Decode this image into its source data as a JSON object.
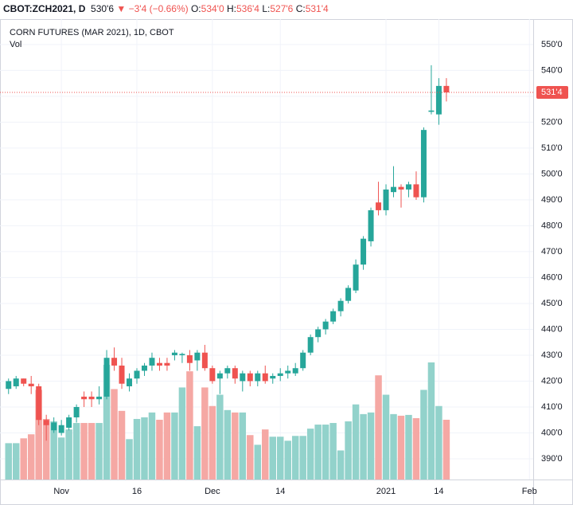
{
  "header": {
    "symbol": "CBOT:ZCH2021, D",
    "last": "530'6",
    "arrow": "▼",
    "change": "−3'4 (−0.66%)",
    "ohlc_labels": [
      "O:",
      "H:",
      "L:",
      "C:"
    ],
    "ohlc_values": [
      "534'0",
      "536'4",
      "527'6",
      "531'4"
    ]
  },
  "chart_data": {
    "type": "candlestick",
    "title": "CORN FUTURES (MAR 2021), 1D, CBOT",
    "subtitle": "Vol",
    "categories": [
      null,
      null,
      null,
      null,
      null,
      null,
      null,
      "Nov",
      null,
      null,
      null,
      null,
      null,
      null,
      null,
      null,
      null,
      "16",
      null,
      null,
      null,
      null,
      null,
      null,
      null,
      null,
      null,
      "Dec",
      null,
      null,
      null,
      null,
      null,
      null,
      null,
      null,
      "14",
      null,
      null,
      null,
      null,
      null,
      null,
      null,
      null,
      null,
      null,
      null,
      null,
      null,
      "2021",
      null,
      null,
      null,
      null,
      null,
      null,
      "14",
      null,
      null,
      null,
      null,
      null,
      null,
      null,
      null,
      null,
      null,
      null,
      "Feb"
    ],
    "open": [
      417,
      418,
      421,
      419,
      418,
      405,
      401,
      400,
      402,
      406,
      414,
      414,
      413,
      414,
      429,
      426,
      418,
      421,
      424,
      426,
      427,
      427,
      430,
      430,
      430,
      428,
      431,
      425,
      421,
      423,
      425,
      420,
      423,
      420,
      423,
      421,
      422,
      423,
      423,
      425,
      431,
      437,
      440,
      443,
      447,
      451,
      455,
      465,
      474,
      489,
      486,
      493,
      495,
      494,
      496,
      491,
      524,
      523,
      534,
      null,
      null,
      null,
      null,
      null,
      null,
      null,
      null,
      null,
      null,
      null
    ],
    "high": [
      421,
      422,
      421,
      422,
      419,
      407,
      406,
      405,
      407,
      411,
      416,
      416,
      418,
      432,
      433,
      429,
      423,
      425,
      427,
      431,
      429,
      429,
      432,
      431,
      432,
      432,
      434,
      426,
      424,
      426,
      426,
      424,
      424,
      424,
      426,
      423,
      425,
      426,
      427,
      432,
      438,
      441,
      444,
      448,
      452,
      457,
      467,
      476,
      487,
      497,
      496,
      503,
      496,
      497,
      501,
      518,
      542,
      537,
      537,
      null,
      null,
      null,
      null,
      null,
      null,
      null,
      null,
      null,
      null,
      null
    ],
    "low": [
      415,
      417,
      418,
      415,
      403,
      397,
      400,
      399,
      401,
      404,
      410,
      410,
      411,
      413,
      424,
      417,
      416,
      419,
      422,
      424,
      424,
      424,
      428,
      427,
      424,
      424,
      424,
      419,
      415,
      421,
      419,
      416,
      418,
      418,
      419,
      419,
      420,
      421,
      422,
      424,
      430,
      435,
      438,
      442,
      445,
      450,
      454,
      463,
      472,
      484,
      484,
      491,
      487,
      491,
      490,
      489,
      523,
      519,
      528,
      null,
      null,
      null,
      null,
      null,
      null,
      null,
      null,
      null,
      null,
      null
    ],
    "close": [
      420,
      421,
      419,
      418,
      405,
      403,
      404,
      403,
      406,
      410,
      413,
      413,
      414,
      429,
      426,
      419,
      421,
      424,
      426,
      429,
      426,
      426,
      431,
      430.5,
      427,
      431,
      425,
      420,
      423,
      425,
      421,
      423,
      420,
      423,
      420,
      422,
      423,
      424,
      425,
      431,
      437,
      440,
      443,
      447,
      451,
      456,
      465,
      475,
      486,
      486,
      494,
      495,
      494,
      496,
      491,
      517,
      524.5,
      534,
      531.5,
      null,
      null,
      null,
      null,
      null,
      null,
      null,
      null,
      null,
      null,
      null
    ],
    "volume": [
      45,
      45,
      51,
      56,
      111,
      75,
      72,
      52,
      62,
      70,
      70,
      70,
      70,
      142,
      112,
      85,
      50,
      75,
      77,
      83,
      74,
      83,
      83,
      114,
      134,
      66,
      114,
      91,
      105,
      86,
      83,
      83,
      55,
      43,
      62,
      53,
      53,
      48,
      54,
      54,
      63,
      68,
      68,
      70,
      36,
      72,
      93,
      81,
      83,
      129,
      105,
      81,
      79,
      80,
      76,
      111,
      145,
      91,
      74,
      null,
      null,
      null,
      null,
      null,
      null,
      null,
      null,
      null,
      null,
      null
    ],
    "up_color": "#26a69a",
    "down_color": "#ef5350",
    "volume_up_color": "#92d2cb",
    "volume_down_color": "#f5a8a4",
    "ylim": [
      382,
      559.8
    ],
    "yticks": [
      {
        "value": 390,
        "label": "390'0"
      },
      {
        "value": 400,
        "label": "400'0"
      },
      {
        "value": 410,
        "label": "410'0"
      },
      {
        "value": 420,
        "label": "420'0"
      },
      {
        "value": 430,
        "label": "430'0"
      },
      {
        "value": 440,
        "label": "440'0"
      },
      {
        "value": 450,
        "label": "450'0"
      },
      {
        "value": 460,
        "label": "460'0"
      },
      {
        "value": 470,
        "label": "470'0"
      },
      {
        "value": 480,
        "label": "480'0"
      },
      {
        "value": 490,
        "label": "490'0"
      },
      {
        "value": 500,
        "label": "500'0"
      },
      {
        "value": 510,
        "label": "510'0"
      },
      {
        "value": 520,
        "label": "520'0"
      },
      {
        "value": 530,
        "label": "530'0"
      },
      {
        "value": 540,
        "label": "540'0"
      },
      {
        "value": 550,
        "label": "550'0"
      }
    ],
    "last_price": {
      "value": 531.5,
      "label": "531'4"
    },
    "grid": true
  }
}
